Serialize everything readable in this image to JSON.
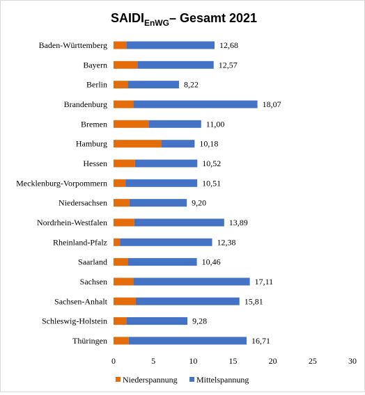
{
  "chart_data": {
    "type": "bar",
    "orientation": "horizontal",
    "stacked": true,
    "title": "SAIDI",
    "title_subscript": "EnWG",
    "title_suffix": "– Gesamt 2021",
    "categories": [
      "Baden-Württemberg",
      "Bayern",
      "Berlin",
      "Brandenburg",
      "Bremen",
      "Hamburg",
      "Hessen",
      "Mecklenburg-Vorpommern",
      "Niedersachsen",
      "Nordrhein-Westfalen",
      "Rheinland-Pfalz",
      "Saarland",
      "Sachsen",
      "Sachsen-Anhalt",
      "Schleswig-Holstein",
      "Thüringen"
    ],
    "series": [
      {
        "name": "Niederspannung",
        "color": "#e46c0a",
        "values": [
          1.6,
          3.0,
          1.8,
          2.5,
          4.4,
          6.0,
          2.7,
          1.5,
          2.0,
          2.6,
          0.8,
          1.8,
          2.5,
          2.8,
          1.6,
          1.9
        ]
      },
      {
        "name": "Mittelspannung",
        "color": "#4472c4",
        "values": [
          11.08,
          9.57,
          6.42,
          15.57,
          6.6,
          4.18,
          7.82,
          9.01,
          7.2,
          11.29,
          11.58,
          8.66,
          14.61,
          13.01,
          7.68,
          14.81
        ]
      }
    ],
    "totals_labels": [
      "12,68",
      "12,57",
      "8,22",
      "18,07",
      "11,00",
      "10,18",
      "10,52",
      "10,51",
      "9,20",
      "13,89",
      "12,38",
      "10,46",
      "17,11",
      "15,81",
      "9,28",
      "16,71"
    ],
    "xlim": [
      0,
      30
    ],
    "xticks": [
      "0",
      "5",
      "10",
      "15",
      "20",
      "25",
      "30"
    ],
    "grid": false,
    "legend": "bottom"
  }
}
